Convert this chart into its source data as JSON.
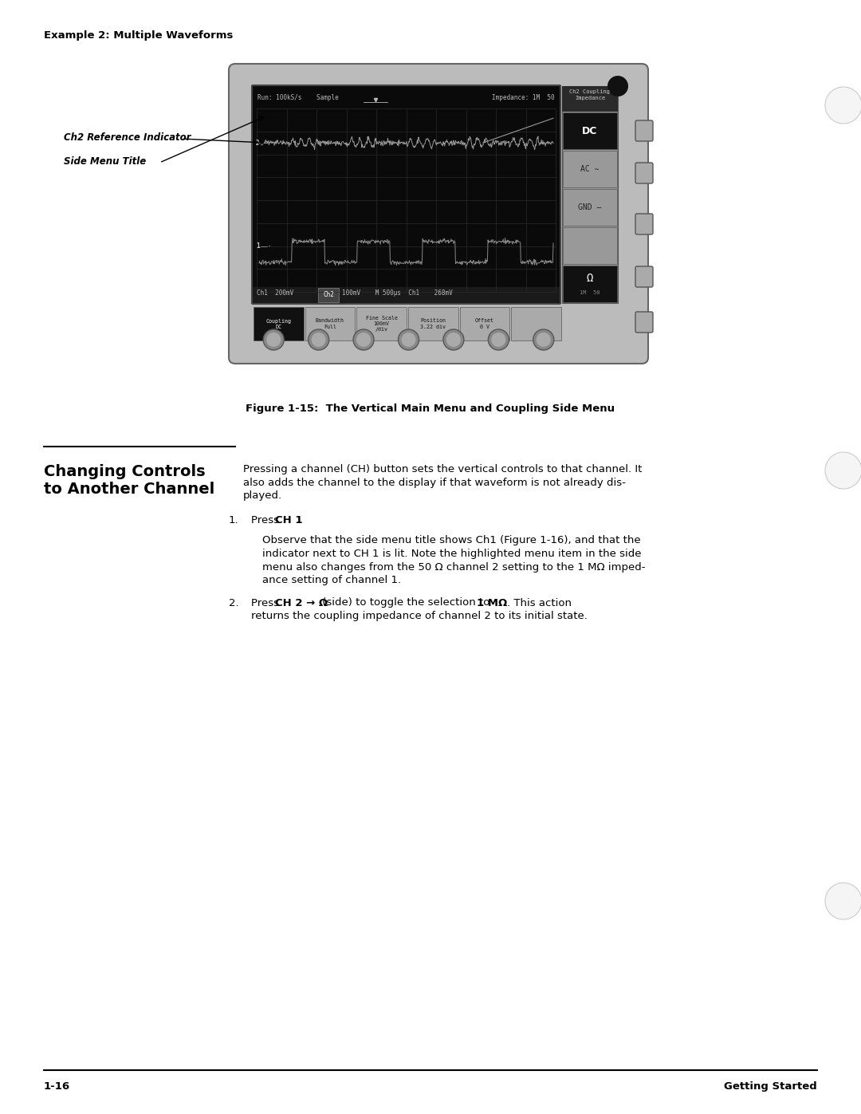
{
  "page_bg": "#ffffff",
  "header_text": "Example 2: Multiple Waveforms",
  "figure_caption": "Figure 1-15:  The Vertical Main Menu and Coupling Side Menu",
  "section_title_line1": "Changing Controls",
  "section_title_line2": "to Another Channel",
  "body_para1_lines": [
    "Pressing a channel (CH) button sets the vertical controls to that channel. It",
    "also adds the channel to the display if that waveform is not already dis-",
    "played."
  ],
  "item1_press": "Press ",
  "item1_bold": "CH 1",
  "item1_end": ".",
  "item1_sub_lines": [
    "Observe that the side menu title shows Ch1 (Figure 1-16), and that the",
    "indicator next to CH 1 is lit. Note the highlighted menu item in the side",
    "menu also changes from the 50 Ω channel 2 setting to the 1 MΩ imped-",
    "ance setting of channel 1."
  ],
  "item2_press": "Press ",
  "item2_bold": "CH 2 → Ω",
  "item2_mid": " (side) to toggle the selection to ",
  "item2_bold2": "1 MΩ",
  "item2_end": ". This action",
  "item2_line2": "returns the coupling impedance of channel 2 to its initial state.",
  "footer_left": "1-16",
  "footer_right": "Getting Started",
  "label_ch2_ref": "Ch2 Reference Indicator",
  "label_side_menu": "Side Menu Title",
  "side_menu_title": "Ch2 Coupling\nImpedance",
  "dc_label": "DC",
  "ac_label": "AC ∼",
  "gnd_label": "GND ―",
  "omega_label": "Ω",
  "im_label": "1M  50",
  "bottom_status_left": "Ch1  200mV",
  "bottom_status_ch2": "Ch2",
  "bottom_status_right": "100mV    M 500μs  Ch1    268mV",
  "run_status": "Run: 100kS/s    Sample",
  "imp_status": "Impedance: 1M  50"
}
